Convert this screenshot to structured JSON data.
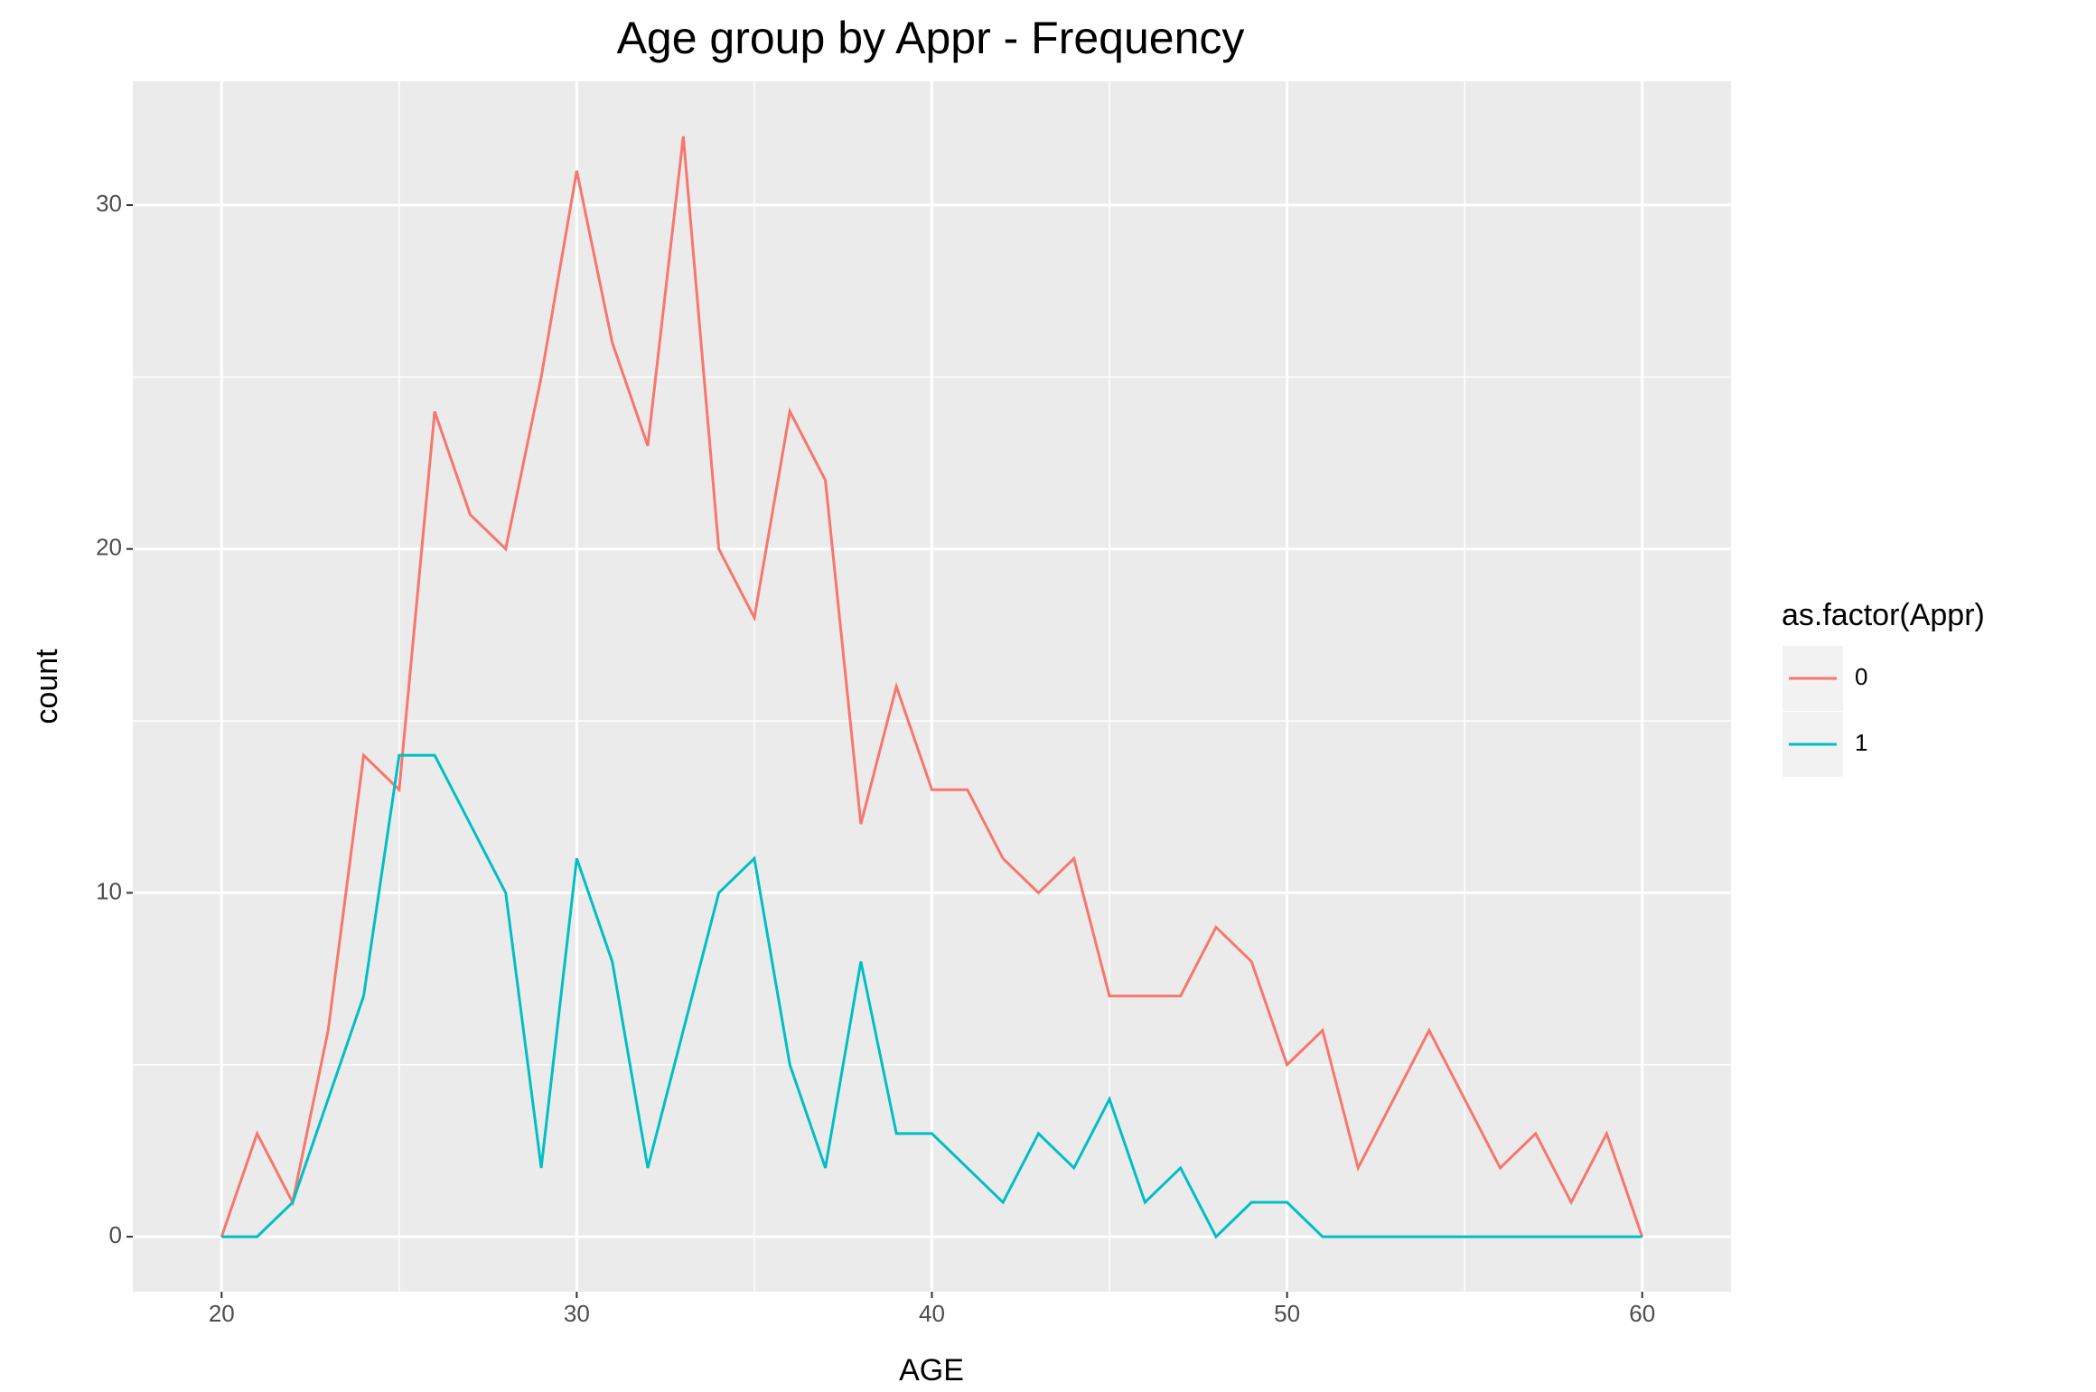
{
  "chart_data": {
    "type": "line",
    "title": "Age group by Appr - Frequency",
    "x_label": "AGE",
    "y_label": "count",
    "x": [
      20,
      21,
      22,
      23,
      24,
      25,
      26,
      27,
      28,
      29,
      30,
      31,
      32,
      33,
      34,
      35,
      36,
      37,
      38,
      39,
      40,
      41,
      42,
      43,
      44,
      45,
      46,
      47,
      48,
      49,
      50,
      51,
      52,
      53,
      54,
      55,
      56,
      57,
      58,
      59,
      60
    ],
    "series": [
      {
        "name": "0",
        "color": "#f8766d",
        "values": [
          0,
          3,
          1,
          6,
          14,
          13,
          24,
          21,
          20,
          25,
          31,
          26,
          23,
          32,
          20,
          18,
          24,
          22,
          12,
          16,
          13,
          13,
          11,
          10,
          11,
          7,
          7,
          7,
          9,
          8,
          5,
          6,
          2,
          4,
          6,
          4,
          2,
          3,
          1,
          3,
          0
        ]
      },
      {
        "name": "1",
        "color": "#00bfc4",
        "values": [
          0,
          0,
          1,
          4,
          7,
          14,
          14,
          12,
          10,
          2,
          11,
          8,
          2,
          6,
          10,
          11,
          5,
          2,
          8,
          3,
          3,
          2,
          1,
          3,
          2,
          4,
          1,
          2,
          0,
          1,
          1,
          0,
          0,
          0,
          0,
          0,
          0,
          0,
          0,
          0,
          0
        ]
      }
    ],
    "legend_title": "as.factor(Appr)",
    "xlim": [
      17.5,
      62.5
    ],
    "xticks": [
      20,
      30,
      40,
      50,
      60
    ],
    "x_minor_ticks": [
      25,
      35,
      45,
      55
    ],
    "ylim": [
      -1.6,
      33.6
    ],
    "yticks": [
      0,
      10,
      20,
      30
    ],
    "y_minor_ticks": [
      5,
      15,
      25
    ],
    "grid": true,
    "legend_position": "right"
  }
}
